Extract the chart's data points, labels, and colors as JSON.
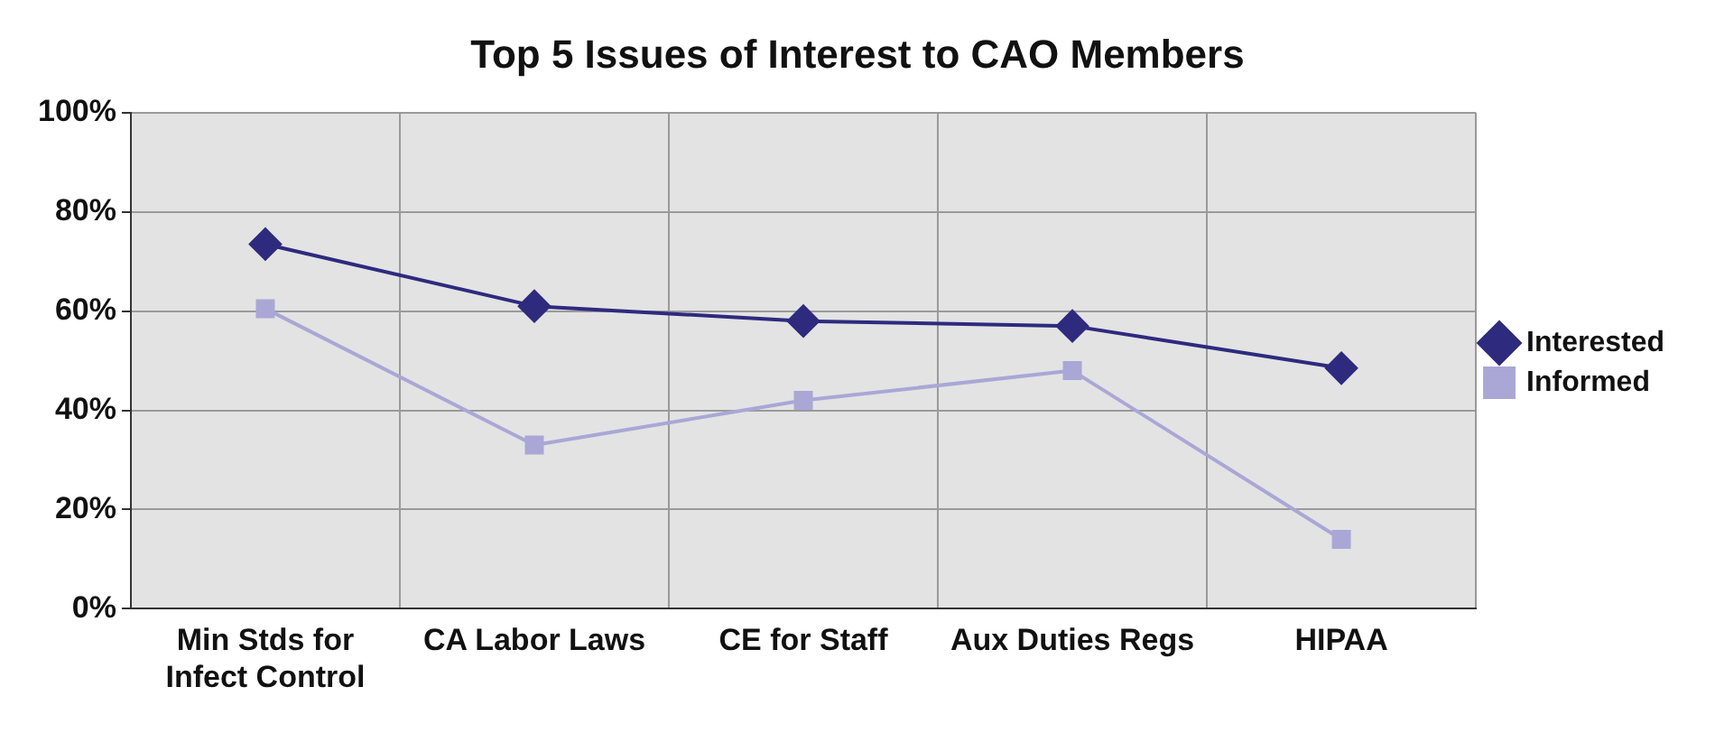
{
  "chart_data": {
    "type": "line",
    "title": "Top 5 Issues of Interest to CAO Members",
    "categories": [
      "Min Stds for Infect Control",
      "CA Labor Laws",
      "CE for Staff",
      "Aux Duties Regs",
      "HIPAA"
    ],
    "series": [
      {
        "name": "Interested",
        "color": "#2e2a7e",
        "marker": "diamond",
        "values": [
          73.5,
          61,
          58,
          57,
          48.5
        ]
      },
      {
        "name": "Informed",
        "color": "#aaa7d6",
        "marker": "square",
        "values": [
          60.5,
          33,
          42,
          48,
          14
        ]
      }
    ],
    "ylim": [
      0,
      100
    ],
    "yticks": [
      {
        "value": 0,
        "label": "0%"
      },
      {
        "value": 20,
        "label": "20%"
      },
      {
        "value": 40,
        "label": "40%"
      },
      {
        "value": 60,
        "label": "60%"
      },
      {
        "value": 80,
        "label": "80%"
      },
      {
        "value": 100,
        "label": "100%"
      }
    ],
    "grid": true,
    "legend": "right",
    "line_style": "solid"
  }
}
